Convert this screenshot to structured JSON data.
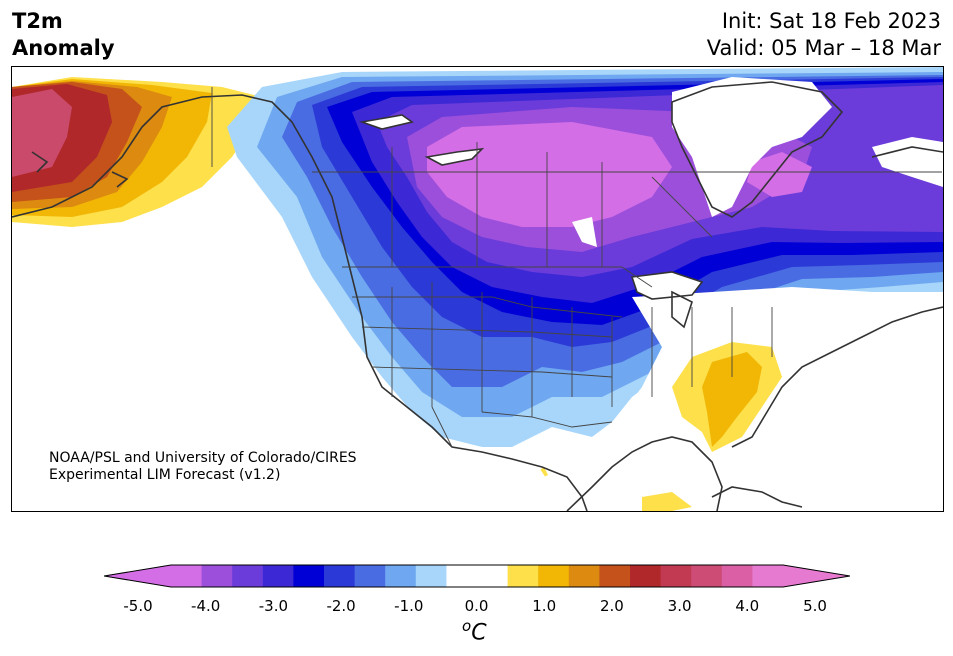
{
  "header": {
    "title_line1": "T2m",
    "title_line2": "Anomaly",
    "init": "Init: Sat 18 Feb 2023",
    "valid": "Valid: 05 Mar – 18 Mar"
  },
  "credit": {
    "line1": "NOAA/PSL and University of Colorado/CIRES",
    "line2": "Experimental LIM Forecast (v1.2)"
  },
  "colorbar": {
    "ticks": [
      "-5.0",
      "-4.0",
      "-3.0",
      "-2.0",
      "-1.0",
      "0.0",
      "1.0",
      "2.0",
      "3.0",
      "4.0",
      "5.0"
    ],
    "units_base": "C",
    "units_sup": "o",
    "colors": [
      "#d46ee6",
      "#9b4fdb",
      "#6b3cd9",
      "#3d28d6",
      "#0000d6",
      "#2b39d6",
      "#4a6ce3",
      "#6fa8f0",
      "#a8d6fa",
      "#ffffff",
      "#ffffff",
      "#fde04a",
      "#f2b705",
      "#dc8a10",
      "#c4521a",
      "#b0282a",
      "#c23a52",
      "#cc4c76",
      "#da5fa4",
      "#e67ad0"
    ]
  },
  "map": {
    "palette": {
      "ocean_white": "#ffffff",
      "pink_warm": "#c94a6a",
      "deep_red": "#b0282a",
      "orange_red": "#c4521a",
      "orange": "#dc8a10",
      "amber": "#f2b705",
      "yellow": "#fde04a",
      "light_blue": "#a8d6fa",
      "sky_blue": "#6fa8f0",
      "mid_blue": "#4a6ce3",
      "royal_blue": "#2b39d6",
      "deep_blue": "#0000d6",
      "indigo": "#3d28d6",
      "violet": "#6b3cd9",
      "purple": "#9b4fdb",
      "magenta": "#d46ee6",
      "coast": "#333333"
    }
  }
}
